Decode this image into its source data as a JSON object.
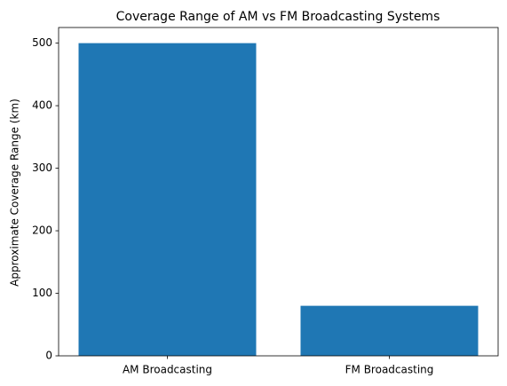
{
  "chart_data": {
    "type": "bar",
    "title": "Coverage Range of AM vs FM Broadcasting Systems",
    "y_label": "Approximate Coverage Range (km)",
    "categories": [
      "AM Broadcasting",
      "FM Broadcasting"
    ],
    "values": [
      500,
      80
    ],
    "color": "#1f77b4",
    "ylim": [
      0,
      525
    ],
    "yticks": [
      0,
      100,
      200,
      300,
      400,
      500
    ],
    "grid": false
  }
}
